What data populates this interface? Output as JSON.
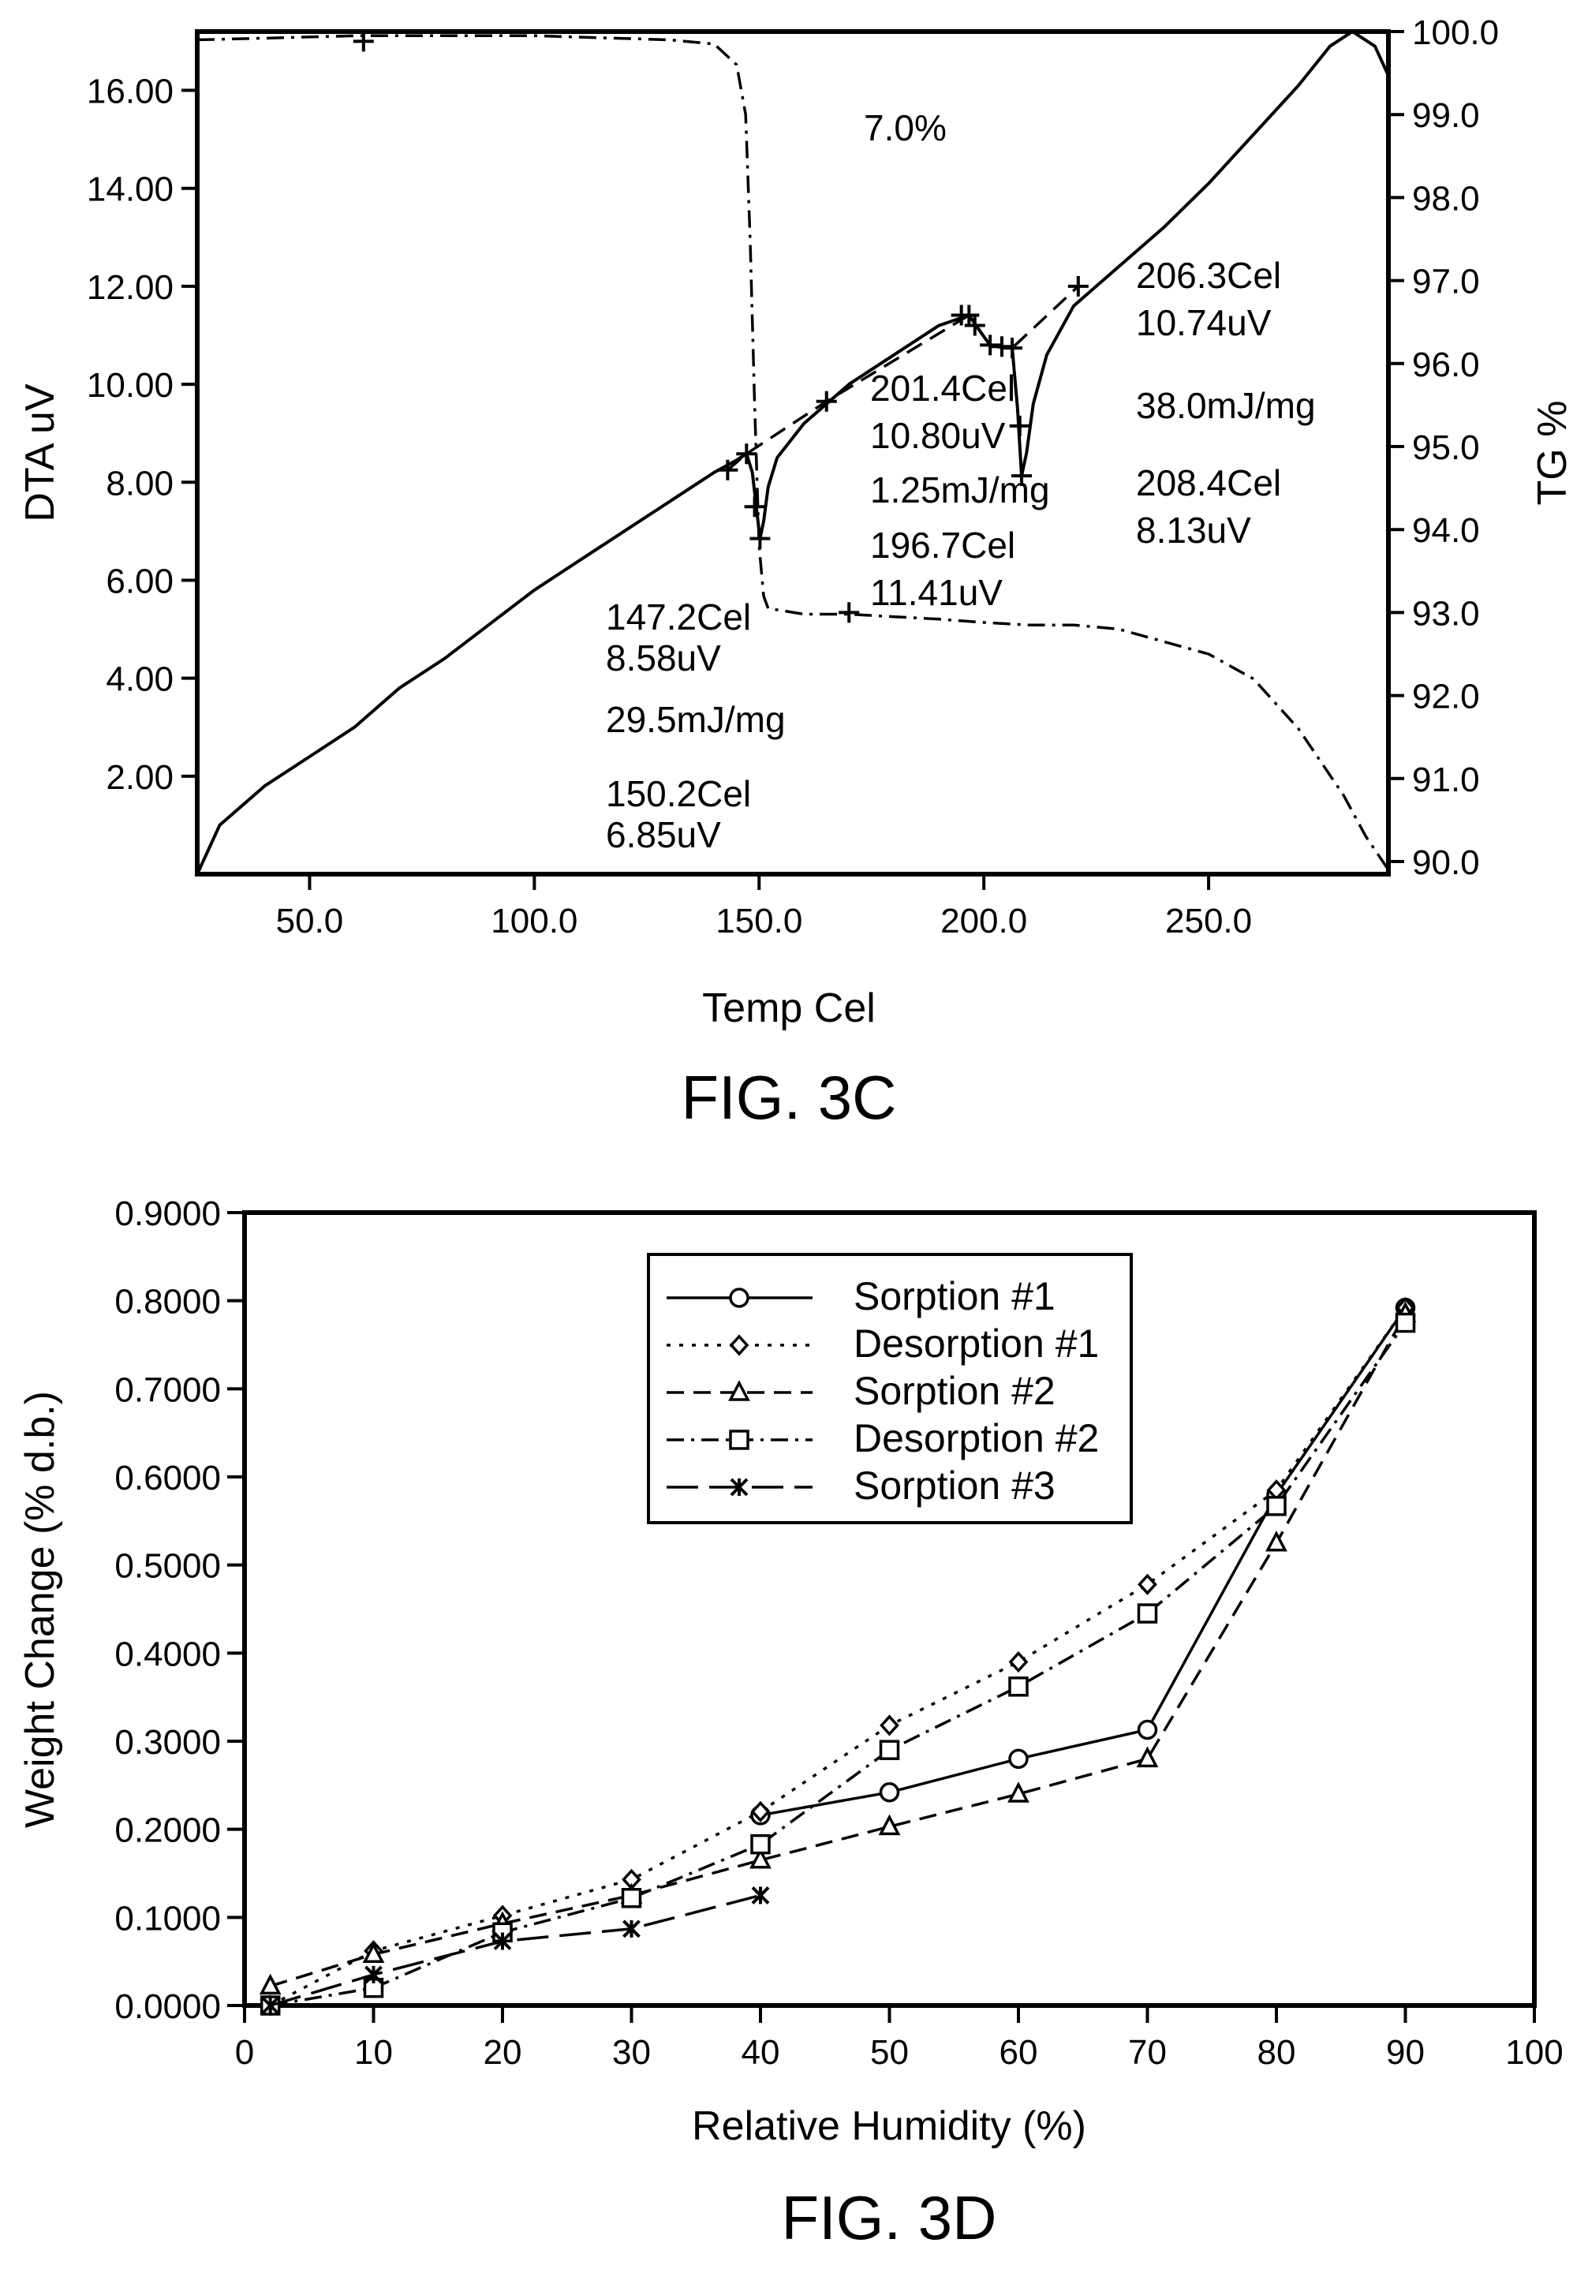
{
  "chart_data": [
    {
      "type": "line",
      "caption": "FIG. 3C",
      "xlabel": "Temp Cel",
      "ylabel": "DTA uV",
      "ylabel_right": "TG %",
      "xlim": [
        25,
        290
      ],
      "ylim": [
        0,
        17.2
      ],
      "ylim_right": [
        90,
        100
      ],
      "x_ticks": [
        "50.0",
        "100.0",
        "150.0",
        "200.0",
        "250.0"
      ],
      "y_ticks": [
        "2.00",
        "4.00",
        "6.00",
        "8.00",
        "10.00",
        "12.00",
        "14.00",
        "16.00"
      ],
      "y_ticks_right": [
        "90.0",
        "91.0",
        "92.0",
        "93.0",
        "94.0",
        "95.0",
        "96.0",
        "97.0",
        "98.0",
        "99.0",
        "100.0"
      ],
      "grid": false,
      "series": [
        {
          "axis": "left",
          "style": "solid",
          "points": [
            [
              25,
              0
            ],
            [
              30,
              1.0
            ],
            [
              40,
              1.8
            ],
            [
              50,
              2.4
            ],
            [
              60,
              3.0
            ],
            [
              70,
              3.8
            ],
            [
              80,
              4.4
            ],
            [
              90,
              5.1
            ],
            [
              100,
              5.8
            ],
            [
              110,
              6.4
            ],
            [
              120,
              7.0
            ],
            [
              130,
              7.6
            ],
            [
              140,
              8.2
            ],
            [
              145,
              8.45
            ],
            [
              147.2,
              8.58
            ],
            [
              148.5,
              8.2
            ],
            [
              149.5,
              7.4
            ],
            [
              150.2,
              6.85
            ],
            [
              151,
              7.2
            ],
            [
              152,
              7.9
            ],
            [
              154,
              8.5
            ],
            [
              160,
              9.2
            ],
            [
              170,
              10.0
            ],
            [
              180,
              10.6
            ],
            [
              190,
              11.2
            ],
            [
              196.7,
              11.41
            ],
            [
              199,
              11.1
            ],
            [
              201.4,
              10.8
            ],
            [
              204,
              10.75
            ],
            [
              206.3,
              10.74
            ],
            [
              207.5,
              9.5
            ],
            [
              208.4,
              8.13
            ],
            [
              209.5,
              8.6
            ],
            [
              211,
              9.6
            ],
            [
              214,
              10.6
            ],
            [
              220,
              11.6
            ],
            [
              230,
              12.4
            ],
            [
              240,
              13.2
            ],
            [
              250,
              14.1
            ],
            [
              260,
              15.1
            ],
            [
              270,
              16.1
            ],
            [
              277,
              16.9
            ],
            [
              282,
              17.2
            ],
            [
              287,
              16.9
            ],
            [
              290,
              16.3
            ]
          ]
        },
        {
          "axis": "right",
          "style": "dash-dot",
          "points": [
            [
              25,
              99.9
            ],
            [
              40,
              99.92
            ],
            [
              60,
              99.95
            ],
            [
              80,
              99.95
            ],
            [
              100,
              99.95
            ],
            [
              130,
              99.9
            ],
            [
              140,
              99.85
            ],
            [
              145,
              99.6
            ],
            [
              147,
              99.0
            ],
            [
              148,
              97.5
            ],
            [
              149,
              95.5
            ],
            [
              150,
              93.8
            ],
            [
              151,
              93.2
            ],
            [
              152,
              93.05
            ],
            [
              160,
              92.98
            ],
            [
              170,
              92.98
            ],
            [
              180,
              92.95
            ],
            [
              190,
              92.92
            ],
            [
              200,
              92.88
            ],
            [
              210,
              92.85
            ],
            [
              220,
              92.85
            ],
            [
              230,
              92.8
            ],
            [
              240,
              92.65
            ],
            [
              250,
              92.5
            ],
            [
              260,
              92.2
            ],
            [
              270,
              91.6
            ],
            [
              280,
              90.8
            ],
            [
              285,
              90.3
            ],
            [
              290,
              89.9
            ]
          ]
        },
        {
          "axis": "left",
          "style": "dashed",
          "points": [
            [
              143,
              8.25
            ],
            [
              147.2,
              8.58
            ],
            [
              165,
              9.65
            ],
            [
              196.7,
              11.41
            ],
            [
              201.4,
              10.8
            ],
            [
              206.3,
              10.74
            ],
            [
              221,
              12.0
            ]
          ]
        }
      ],
      "markers_left": [
        [
          62,
          17.0
        ],
        [
          143,
          8.25
        ],
        [
          147.2,
          8.58
        ],
        [
          149,
          7.5
        ],
        [
          150.2,
          6.85
        ],
        [
          165,
          9.65
        ],
        [
          195,
          11.41
        ],
        [
          196.7,
          11.41
        ],
        [
          198,
          11.2
        ],
        [
          201.4,
          10.8
        ],
        [
          204,
          10.77
        ],
        [
          206.3,
          10.74
        ],
        [
          208,
          9.15
        ],
        [
          208.4,
          8.13
        ],
        [
          221,
          12.0
        ]
      ],
      "markers_right": [
        [
          170,
          93.0
        ]
      ],
      "annotations": {
        "ann_7pct": "7.0%",
        "ann_1472": "147.2Cel",
        "ann_858": "8.58uV",
        "ann_295": "29.5mJ/mg",
        "ann_1502": "150.2Cel",
        "ann_685": "6.85uV",
        "ann_2014": "201.4Cel",
        "ann_1080": "10.80uV",
        "ann_125": "1.25mJ/mg",
        "ann_1967": "196.7Cel",
        "ann_1141": "11.41uV",
        "ann_2063": "206.3Cel",
        "ann_1074": "10.74uV",
        "ann_380": "38.0mJ/mg",
        "ann_2084": "208.4Cel",
        "ann_813": "8.13uV"
      }
    },
    {
      "type": "line",
      "caption": "FIG. 3D",
      "xlabel": "Relative Humidity (%)",
      "ylabel": "Weight Change (% d.b.)",
      "xlim": [
        0,
        100
      ],
      "ylim": [
        0,
        0.9
      ],
      "x_ticks": [
        "0",
        "10",
        "20",
        "30",
        "40",
        "50",
        "60",
        "70",
        "80",
        "90",
        "100"
      ],
      "y_ticks": [
        "0.0000",
        "0.1000",
        "0.2000",
        "0.3000",
        "0.4000",
        "0.5000",
        "0.6000",
        "0.7000",
        "0.8000",
        "0.9000"
      ],
      "grid": false,
      "legend_position": "top-center",
      "series": [
        {
          "name": "Sorption #1",
          "marker": "circle",
          "style": "solid",
          "x": [
            40,
            50,
            60,
            70,
            80,
            90
          ],
          "y": [
            0.216,
            0.242,
            0.28,
            0.313,
            0.58,
            0.792
          ]
        },
        {
          "name": "Desorption #1",
          "marker": "diamond",
          "style": "dotted",
          "x": [
            2,
            10,
            20,
            30,
            40,
            50,
            60,
            70,
            80,
            90
          ],
          "y": [
            0.0,
            0.062,
            0.102,
            0.143,
            0.22,
            0.318,
            0.39,
            0.478,
            0.585,
            0.792
          ]
        },
        {
          "name": "Sorption #2",
          "marker": "triangle",
          "style": "dashed",
          "x": [
            2,
            10,
            20,
            30,
            40,
            50,
            60,
            70,
            80,
            90
          ],
          "y": [
            0.022,
            0.058,
            0.093,
            0.125,
            0.165,
            0.203,
            0.24,
            0.28,
            0.525,
            0.785
          ]
        },
        {
          "name": "Desorption #2",
          "marker": "square",
          "style": "dash-dot",
          "x": [
            2,
            10,
            20,
            30,
            40,
            50,
            60,
            70,
            80,
            90
          ],
          "y": [
            0.0,
            0.02,
            0.083,
            0.122,
            0.183,
            0.29,
            0.362,
            0.445,
            0.567,
            0.775
          ]
        },
        {
          "name": "Sorption #3",
          "marker": "asterisk",
          "style": "long-dash",
          "x": [
            2,
            10,
            20,
            30,
            40
          ],
          "y": [
            0.0,
            0.035,
            0.073,
            0.087,
            0.125
          ]
        }
      ]
    }
  ]
}
